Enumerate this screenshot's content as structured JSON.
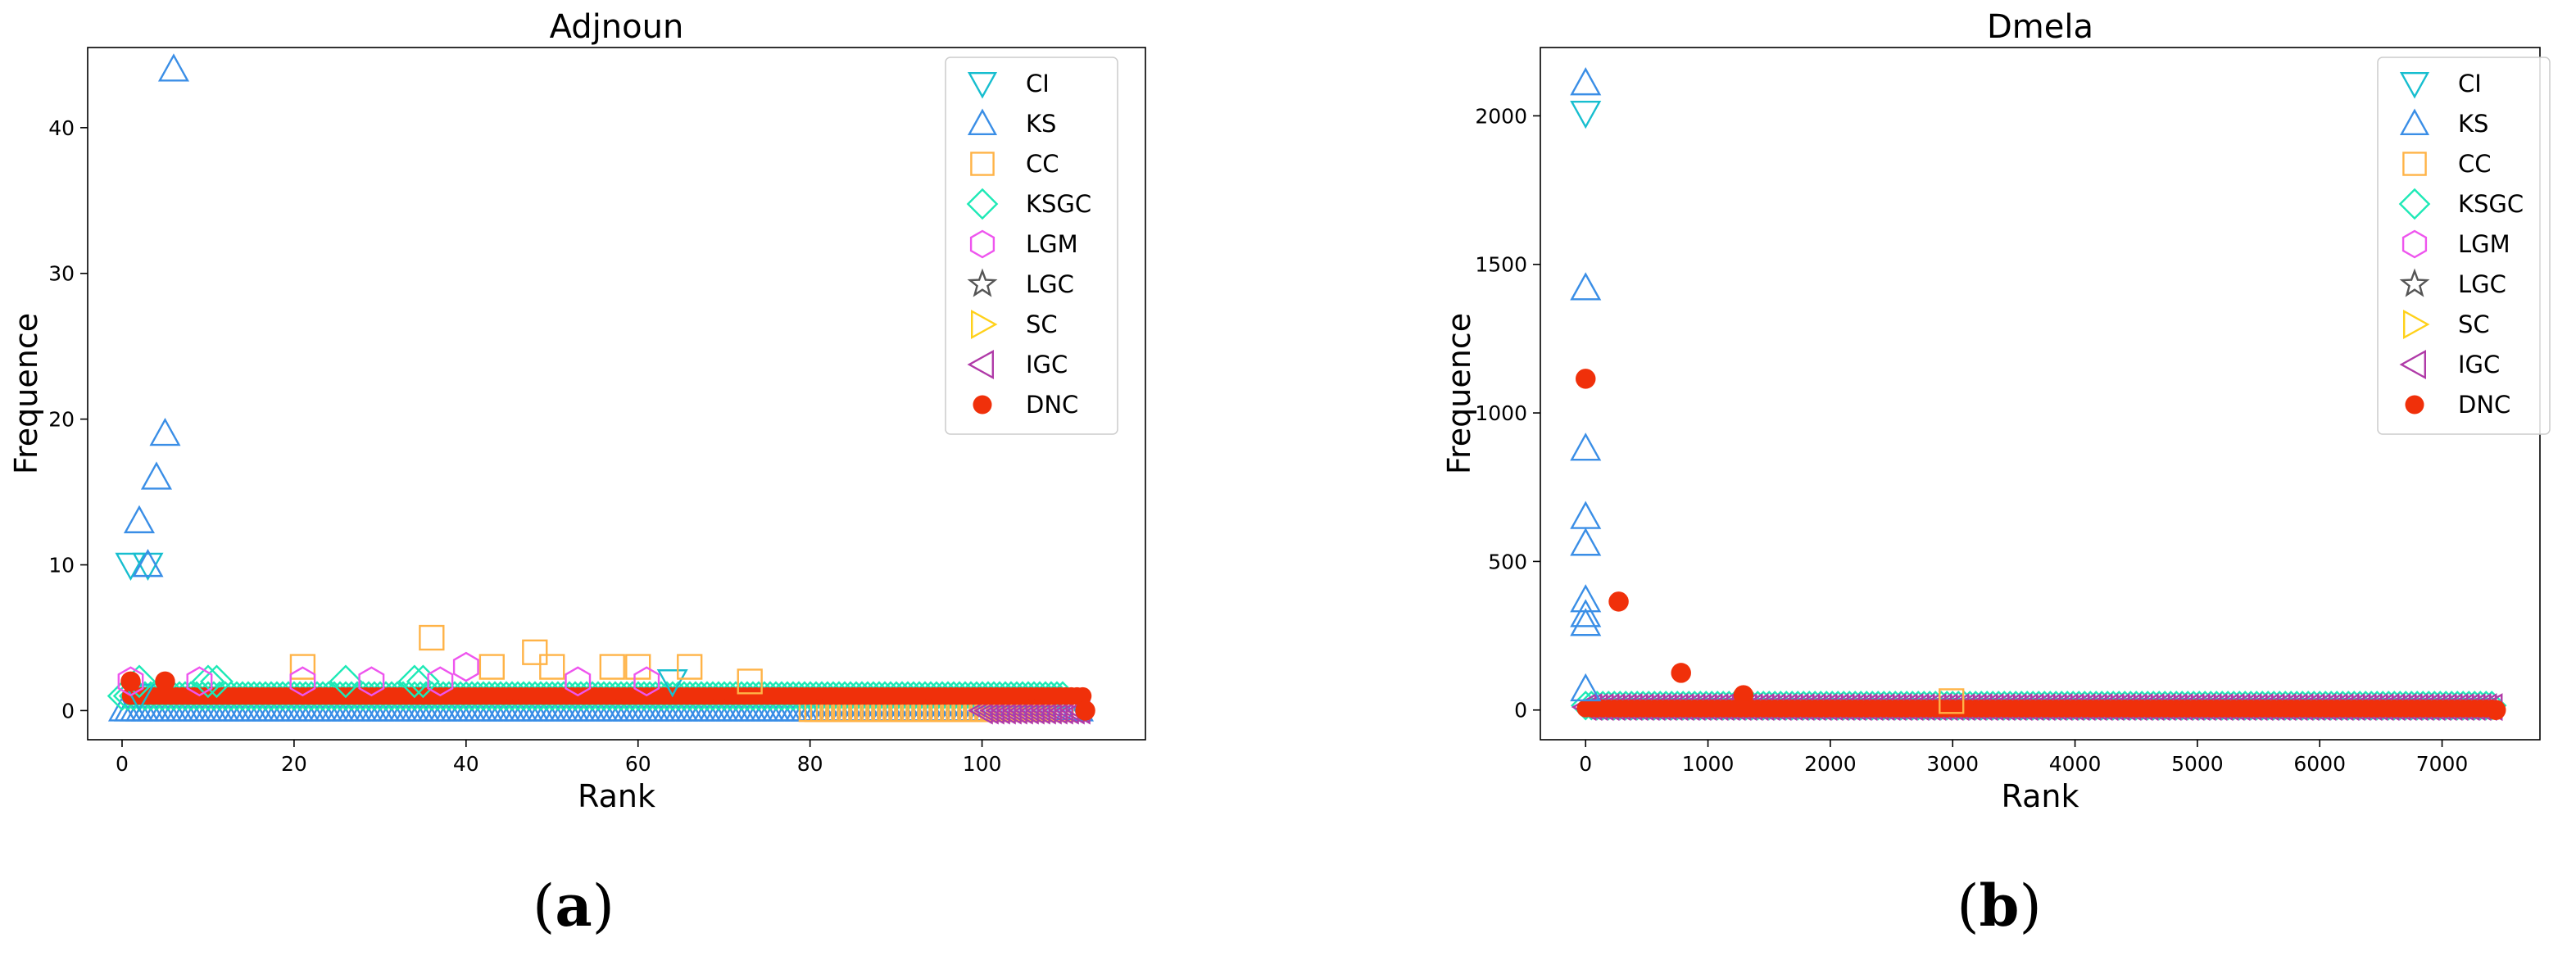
{
  "colors": {
    "CI": "#17becf",
    "KS": "#3a8ee6",
    "CC": "#ffb347",
    "KSGC": "#1de9b6",
    "LGM": "#ee55ee",
    "LGC": "#555555",
    "SC": "#ffd11a",
    "IGC": "#b03aa8",
    "DNC": "#f0300a"
  },
  "chart_data": [
    {
      "type": "scatter",
      "title": "Adjnoun",
      "xlabel": "Rank",
      "ylabel": "Frequence",
      "xlim": [
        -4,
        119
      ],
      "ylim": [
        -2,
        45.5
      ],
      "xticks": [
        0,
        20,
        40,
        60,
        80,
        100
      ],
      "yticks": [
        0,
        10,
        20,
        30,
        40
      ],
      "xtick_labels": [
        "0",
        "20",
        "40",
        "60",
        "80",
        "100"
      ],
      "ytick_labels": [
        "0",
        "10",
        "20",
        "30",
        "40"
      ],
      "caption": "(a)",
      "caption_letter": "a",
      "legend_position": "top-right",
      "legend": [
        "CI",
        "KS",
        "CC",
        "KSGC",
        "LGM",
        "LGC",
        "SC",
        "IGC",
        "DNC"
      ],
      "markers": {
        "CI": "tri-down",
        "KS": "tri-up",
        "CC": "square",
        "KSGC": "diamond",
        "LGM": "hexagon",
        "LGC": "star",
        "SC": "tri-right",
        "IGC": "tri-left",
        "DNC": "dot"
      },
      "series": [
        {
          "name": "CI",
          "x": [
            1,
            2,
            3,
            64
          ],
          "y": [
            10,
            1,
            10,
            2
          ]
        },
        {
          "name": "KS",
          "x": [
            2,
            3,
            4,
            5,
            6
          ],
          "y": [
            13,
            10,
            16,
            19,
            44
          ]
        },
        {
          "name": "CC",
          "x": [
            21,
            36,
            43,
            48,
            50,
            57,
            60,
            66,
            73
          ],
          "y": [
            3,
            5,
            3,
            4,
            3,
            3,
            3,
            3,
            2
          ]
        },
        {
          "name": "KSGC",
          "x": [
            2,
            10,
            11,
            26,
            34,
            35
          ],
          "y": [
            2,
            2,
            2,
            2,
            2,
            2
          ]
        },
        {
          "name": "LGM",
          "x": [
            1,
            9,
            21,
            29,
            37,
            40,
            53,
            61
          ],
          "y": [
            2,
            2,
            2,
            2,
            2,
            3,
            2,
            2
          ]
        },
        {
          "name": "DNC",
          "x": [
            1,
            5,
            112
          ],
          "y": [
            2,
            2,
            0
          ]
        }
      ],
      "bands": [
        {
          "name": "KS",
          "x_range": [
            0,
            112
          ],
          "y": 0
        },
        {
          "name": "KSGC",
          "x_range": [
            0,
            110
          ],
          "y": 1
        },
        {
          "name": "CC",
          "x_range": [
            80,
            110
          ],
          "y": 0
        },
        {
          "name": "IGC",
          "x_range": [
            100,
            112
          ],
          "y": 0
        },
        {
          "name": "DNC",
          "x_range": [
            1,
            112
          ],
          "y": 1
        }
      ]
    },
    {
      "type": "scatter",
      "title": "Dmela",
      "xlabel": "Rank",
      "ylabel": "Frequence",
      "xlim": [
        -370,
        7800
      ],
      "ylim": [
        -100,
        2230
      ],
      "xticks": [
        0,
        1000,
        2000,
        3000,
        4000,
        5000,
        6000,
        7000
      ],
      "yticks": [
        0,
        500,
        1000,
        1500,
        2000
      ],
      "xtick_labels": [
        "0",
        "1000",
        "2000",
        "3000",
        "4000",
        "5000",
        "6000",
        "7000"
      ],
      "ytick_labels": [
        "0",
        "500",
        "1000",
        "1500",
        "2000"
      ],
      "caption": "(b)",
      "caption_letter": "b",
      "legend_position": "top-right",
      "legend": [
        "CI",
        "KS",
        "CC",
        "KSGC",
        "LGM",
        "LGC",
        "SC",
        "IGC",
        "DNC"
      ],
      "markers": {
        "CI": "tri-down",
        "KS": "tri-up",
        "CC": "square",
        "KSGC": "diamond",
        "LGM": "hexagon",
        "LGC": "star",
        "SC": "tri-right",
        "IGC": "tri-left",
        "DNC": "dot"
      },
      "series": [
        {
          "name": "CI",
          "x": [
            0
          ],
          "y": [
            2010
          ]
        },
        {
          "name": "KS",
          "x": [
            0,
            0,
            0,
            0,
            0,
            0,
            0,
            0,
            0
          ],
          "y": [
            2110,
            1420,
            880,
            650,
            560,
            370,
            320,
            290,
            70
          ]
        },
        {
          "name": "CC",
          "x": [
            2990
          ],
          "y": [
            30
          ]
        },
        {
          "name": "DNC",
          "x": [
            0,
            270,
            780,
            1290,
            7440
          ],
          "y": [
            1115,
            365,
            125,
            50,
            0
          ]
        }
      ],
      "bands": [
        {
          "name": "KSGC",
          "x_range": [
            0,
            7440
          ],
          "y": 15
        },
        {
          "name": "IGC",
          "x_range": [
            0,
            7440
          ],
          "y": 10
        },
        {
          "name": "DNC",
          "x_range": [
            0,
            7440
          ],
          "y": 5
        }
      ]
    }
  ]
}
